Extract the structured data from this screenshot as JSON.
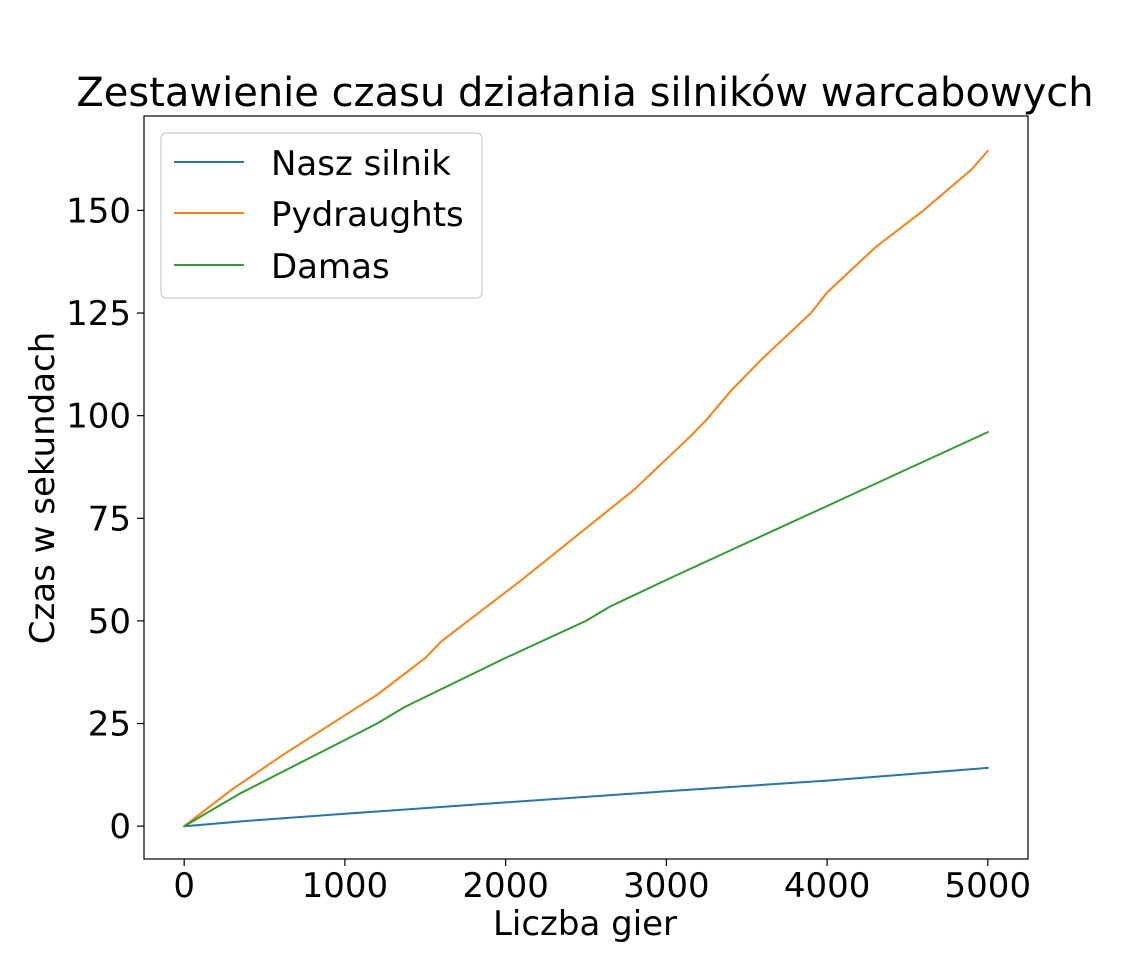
{
  "chart_data": {
    "type": "line",
    "title": "Zestawienie czasu działania silników warcabowych",
    "xlabel": "Liczba gier",
    "ylabel": "Czas w sekundach",
    "xlim": [
      -250,
      5250
    ],
    "ylim": [
      -8,
      173
    ],
    "xticks": [
      0,
      1000,
      2000,
      3000,
      4000,
      5000
    ],
    "yticks": [
      0,
      25,
      50,
      75,
      100,
      125,
      150
    ],
    "grid": false,
    "legend_position": "top-left",
    "series": [
      {
        "name": "Nasz silnik",
        "color": "#1f77b4",
        "x": [
          0,
          250,
          400,
          1000,
          2000,
          3000,
          4000,
          5000
        ],
        "y": [
          0,
          0.8,
          1.3,
          3.0,
          5.8,
          8.5,
          11.1,
          14.2
        ]
      },
      {
        "name": "Pydraughts",
        "color": "#ff7f0e",
        "x": [
          0,
          300,
          620,
          1000,
          1200,
          1500,
          1600,
          2100,
          2800,
          3150,
          3250,
          3400,
          3600,
          3900,
          4000,
          4300,
          4600,
          4900,
          5000
        ],
        "y": [
          0,
          9,
          17.5,
          27,
          32,
          41,
          45,
          60,
          82,
          95,
          99,
          106,
          114,
          125,
          130,
          141,
          150,
          160,
          164.5
        ]
      },
      {
        "name": "Damas",
        "color": "#2ca02c",
        "x": [
          0,
          350,
          1000,
          1200,
          1370,
          2000,
          2500,
          2650,
          3000,
          3500,
          4000,
          4500,
          5000
        ],
        "y": [
          0,
          8,
          21,
          25,
          29,
          41,
          50,
          53.5,
          60,
          69,
          78,
          87,
          96
        ]
      }
    ]
  }
}
